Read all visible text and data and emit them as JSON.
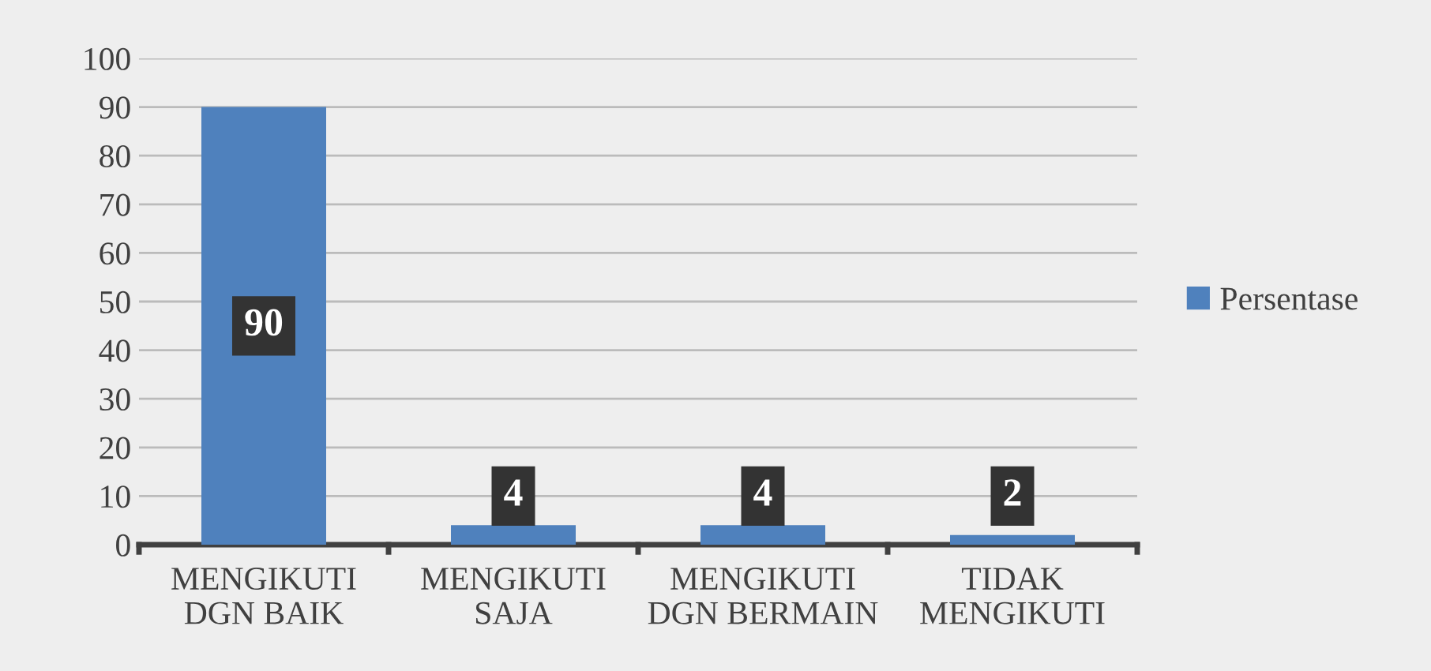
{
  "chart_data": {
    "type": "bar",
    "categories": [
      "MENGIKUTI\nDGN BAIK",
      "MENGIKUTI\nSAJA",
      "MENGIKUTI\nDGN BERMAIN",
      "TIDAK\nMENGIKUTI"
    ],
    "series": [
      {
        "name": "Persentase",
        "color": "#4f81bd",
        "values": [
          90,
          4,
          4,
          2
        ]
      }
    ],
    "ylim": [
      0,
      100
    ],
    "yticks": [
      0,
      10,
      20,
      30,
      40,
      50,
      60,
      70,
      80,
      90,
      100
    ],
    "grid": "y",
    "legend": "right",
    "data_labels": true
  }
}
